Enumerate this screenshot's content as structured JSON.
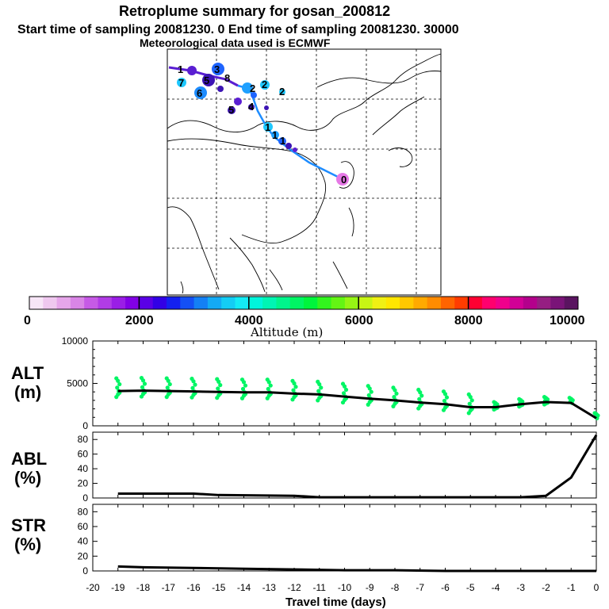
{
  "header": {
    "line1": "Retroplume summary for gosan_200812",
    "line2": "Start time of sampling 20081230.    0     End time of sampling 20081230. 30000",
    "line3": "Meteorological data used is ECMWF"
  },
  "colorbar": {
    "colors": [
      "#f7e6f7",
      "#efc8ef",
      "#e6a6ea",
      "#d985e6",
      "#c65ae6",
      "#b13ce6",
      "#9a1ee6",
      "#8200e6",
      "#5a00e6",
      "#3200e6",
      "#1420f0",
      "#1450f5",
      "#1480f5",
      "#14aaf5",
      "#14cdf5",
      "#14ebf5",
      "#00f5dc",
      "#00f5b4",
      "#00f58c",
      "#00f564",
      "#00f53c",
      "#32f51e",
      "#64f514",
      "#96f514",
      "#c8f514",
      "#f0f014",
      "#ffe600",
      "#ffc800",
      "#ffaa00",
      "#ff8c00",
      "#ff6400",
      "#ff3c00",
      "#ff0032",
      "#ff006e",
      "#f0008c",
      "#d20096",
      "#b4008c",
      "#961e82",
      "#7a1478",
      "#5a1460"
    ],
    "ticks": [
      "0",
      "2000",
      "4000",
      "6000",
      "8000",
      "10000"
    ],
    "label": "Altitude (m)"
  },
  "map": {
    "trajectory_labels": [
      "1",
      "2",
      "3",
      "4",
      "5",
      "6",
      "7",
      "8",
      "9",
      "0"
    ],
    "point_colors": {
      "blue": "#1e64ff",
      "lightblue": "#1ec8ff",
      "purple": "#5a1ed2",
      "pink": "#e678e6",
      "indigo": "#3c14b4"
    }
  },
  "chart_data": [
    {
      "type": "scatter",
      "title": "ALT (m)",
      "ylabel_top": "ALT",
      "ylabel_bottom": "(m)",
      "ylim": [
        0,
        10000
      ],
      "yticks": [
        "0",
        "5000",
        "10000"
      ],
      "x": [
        -19,
        -18,
        -17,
        -16,
        -15,
        -14,
        -13,
        -12,
        -11,
        -10,
        -9,
        -8,
        -7,
        -6,
        -5,
        -4,
        -3,
        -2,
        -1,
        0
      ],
      "mean_line": [
        4100,
        4150,
        4100,
        4050,
        4000,
        3950,
        3950,
        3800,
        3700,
        3450,
        3200,
        3000,
        2750,
        2550,
        2200,
        2200,
        2550,
        2800,
        2700,
        900
      ],
      "scatter_color": "#00f564"
    },
    {
      "type": "line",
      "title": "ABL (%)",
      "ylabel_top": "ABL",
      "ylabel_bottom": "(%)",
      "ylim": [
        0,
        90
      ],
      "yticks": [
        "0",
        "20",
        "40",
        "60",
        "80"
      ],
      "x": [
        -19,
        -16,
        -15,
        -12,
        -11,
        -3,
        -2,
        -1,
        0
      ],
      "values": [
        6,
        6,
        4,
        3,
        1,
        1,
        3,
        28,
        86
      ]
    },
    {
      "type": "line",
      "title": "STR (%)",
      "ylabel_top": "STR",
      "ylabel_bottom": "(%)",
      "ylim": [
        0,
        90
      ],
      "yticks": [
        "0",
        "20",
        "40",
        "60",
        "80"
      ],
      "x": [
        -19,
        -18,
        -16,
        -14,
        -12,
        -10,
        -8,
        -6,
        -4,
        -2,
        -1,
        0
      ],
      "values": [
        6,
        5,
        4,
        3,
        2,
        1,
        1,
        0,
        0,
        0,
        0,
        0
      ]
    }
  ],
  "xaxis": {
    "ticks": [
      "-20",
      "-19",
      "-18",
      "-17",
      "-16",
      "-15",
      "-14",
      "-13",
      "-12",
      "-11",
      "-10",
      "-9",
      "-8",
      "-7",
      "-6",
      "-5",
      "-4",
      "-3",
      "-2",
      "-1",
      "0"
    ],
    "label": "Travel time (days)"
  }
}
